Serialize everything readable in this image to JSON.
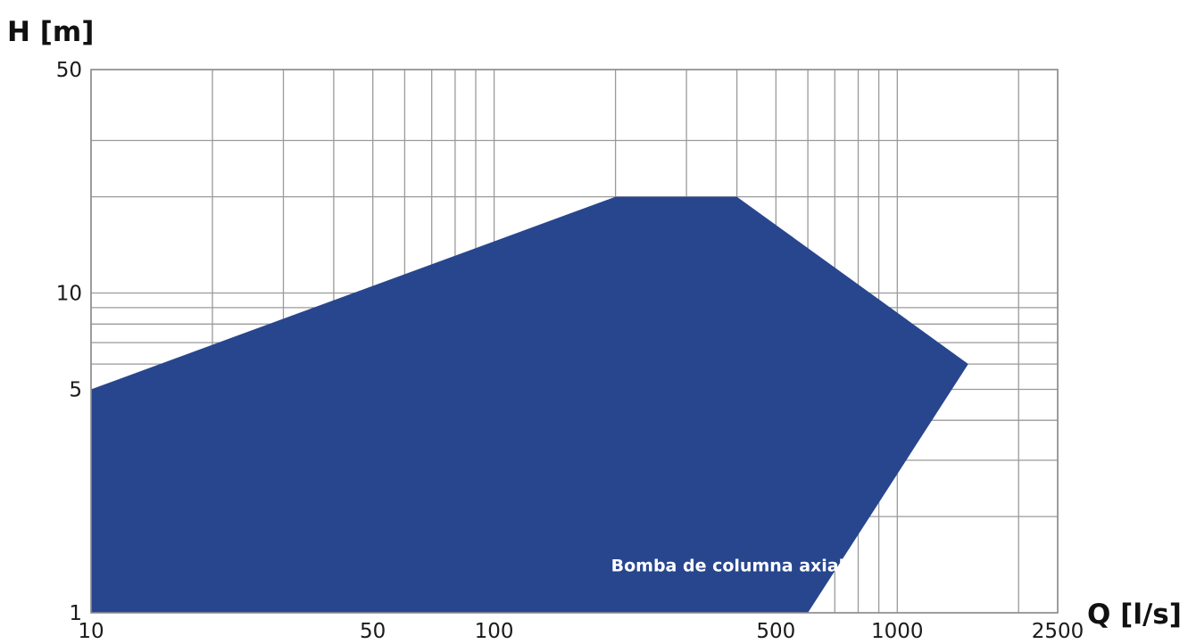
{
  "chart_data": {
    "type": "area",
    "title": "",
    "xlabel": "Q [l/s]",
    "ylabel": "H [m]",
    "x_scale": "log",
    "y_scale": "log",
    "xlim": [
      10,
      2500
    ],
    "ylim": [
      1,
      50
    ],
    "grid": true,
    "x_ticks": [
      10,
      50,
      100,
      500,
      1000,
      2500
    ],
    "y_ticks": [
      1,
      5,
      10,
      50
    ],
    "x_grid": [
      10,
      20,
      30,
      40,
      50,
      60,
      70,
      80,
      90,
      100,
      200,
      300,
      400,
      500,
      600,
      700,
      800,
      900,
      1000,
      2000,
      2500
    ],
    "y_grid": [
      1,
      2,
      3,
      4,
      5,
      6,
      7,
      8,
      9,
      10,
      20,
      30,
      50
    ],
    "series": [
      {
        "name": "Bomba de columna axial",
        "color": "#28468e",
        "points": [
          [
            10,
            1
          ],
          [
            10,
            5
          ],
          [
            200,
            20
          ],
          [
            400,
            20
          ],
          [
            1500,
            6
          ],
          [
            600,
            1
          ]
        ]
      }
    ]
  }
}
